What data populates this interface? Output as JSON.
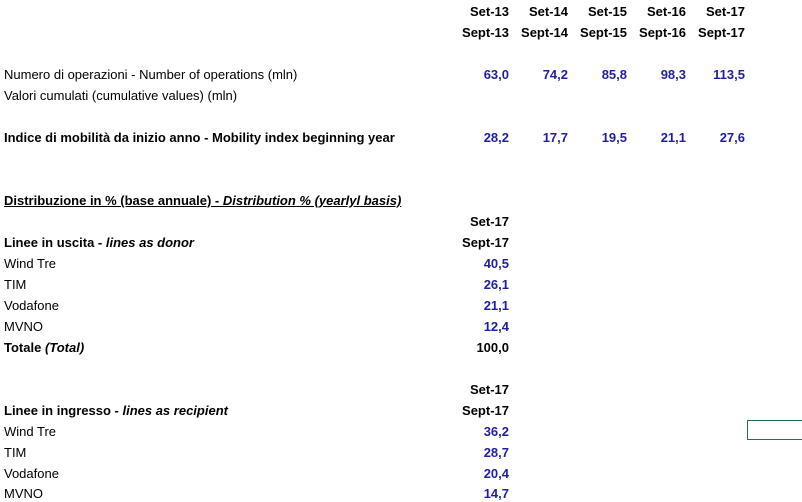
{
  "years_it": [
    "Set-13",
    "Set-14",
    "Set-15",
    "Set-16",
    "Set-17"
  ],
  "years_en": [
    "Sept-13",
    "Sept-14",
    "Sept-15",
    "Sept-16",
    "Sept-17"
  ],
  "operations": {
    "label": "Numero di operazioni - Number of operations (mln)",
    "values": [
      "63,0",
      "74,2",
      "85,8",
      "98,3",
      "113,5"
    ],
    "sublabel": "Valori cumulati (cumulative values) (mln)"
  },
  "mobility": {
    "label": "Indice di mobilità  da inizio anno - Mobility index beginning year",
    "values": [
      "28,2",
      "17,7",
      "19,5",
      "21,1",
      "27,6"
    ]
  },
  "distribution": {
    "title_it": "Distribuzione in % (base annuale) - ",
    "title_en": "Distribution % (yearlyl basis)"
  },
  "donor": {
    "year_it": "Set-17",
    "year_en": "Sept-17",
    "heading_it": "Linee in uscita  - ",
    "heading_en": "lines as donor",
    "rows": [
      {
        "label": "Wind Tre",
        "value": "40,5"
      },
      {
        "label": "TIM",
        "value": "26,1"
      },
      {
        "label": "Vodafone",
        "value": "21,1"
      },
      {
        "label": "MVNO",
        "value": "12,4"
      }
    ],
    "total_label": "Totale ",
    "total_label_en": "(Total)",
    "total_value": "100,0"
  },
  "recipient": {
    "year_it": "Set-17",
    "year_en": "Sept-17",
    "heading_it": "Linee in ingresso  - ",
    "heading_en": "lines as recipient",
    "rows": [
      {
        "label": "Wind Tre",
        "value": "36,2"
      },
      {
        "label": "TIM",
        "value": "28,7"
      },
      {
        "label": "Vodafone",
        "value": "20,4"
      },
      {
        "label": "MVNO",
        "value": "14,7"
      }
    ]
  },
  "colors": {
    "values": "#1f1f9f",
    "selection": "#217346"
  }
}
